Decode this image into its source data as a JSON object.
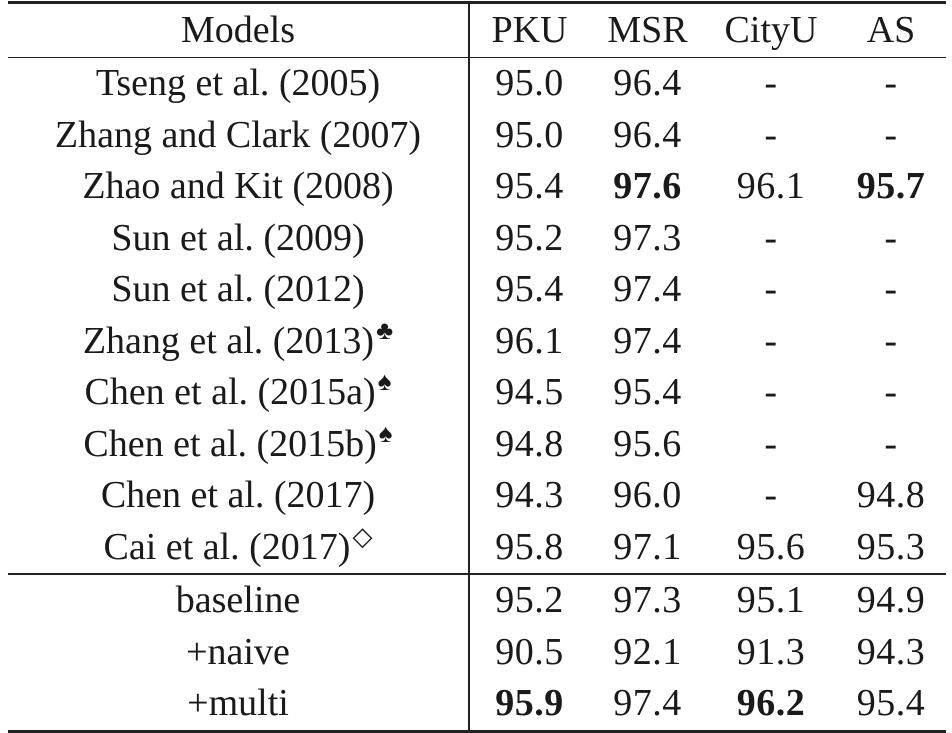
{
  "table": {
    "headers": [
      "Models",
      "PKU",
      "MSR",
      "CityU",
      "AS"
    ],
    "group_a": [
      {
        "model": "Tseng et al. (2005)",
        "mark": "",
        "pku": "95.0",
        "msr": "96.4",
        "cityu": "-",
        "as": "-",
        "bold": []
      },
      {
        "model": "Zhang and Clark (2007)",
        "mark": "",
        "pku": "95.0",
        "msr": "96.4",
        "cityu": "-",
        "as": "-",
        "bold": []
      },
      {
        "model": "Zhao and Kit (2008)",
        "mark": "",
        "pku": "95.4",
        "msr": "97.6",
        "cityu": "96.1",
        "as": "95.7",
        "bold": [
          "msr",
          "as"
        ]
      },
      {
        "model": "Sun et al. (2009)",
        "mark": "",
        "pku": "95.2",
        "msr": "97.3",
        "cityu": "-",
        "as": "-",
        "bold": []
      },
      {
        "model": "Sun et al. (2012)",
        "mark": "",
        "pku": "95.4",
        "msr": "97.4",
        "cityu": "-",
        "as": "-",
        "bold": []
      },
      {
        "model": "Zhang et al. (2013)",
        "mark": "♣",
        "pku": "96.1",
        "msr": "97.4",
        "cityu": "-",
        "as": "-",
        "bold": []
      },
      {
        "model": "Chen et al. (2015a)",
        "mark": "♠",
        "pku": "94.5",
        "msr": "95.4",
        "cityu": "-",
        "as": "-",
        "bold": []
      },
      {
        "model": "Chen et al. (2015b)",
        "mark": "♠",
        "pku": "94.8",
        "msr": "95.6",
        "cityu": "-",
        "as": "-",
        "bold": []
      },
      {
        "model": "Chen et al. (2017)",
        "mark": "",
        "pku": "94.3",
        "msr": "96.0",
        "cityu": "-",
        "as": "94.8",
        "bold": []
      },
      {
        "model": "Cai et al. (2017)",
        "mark": "◇",
        "pku": "95.8",
        "msr": "97.1",
        "cityu": "95.6",
        "as": "95.3",
        "bold": []
      }
    ],
    "group_b": [
      {
        "model": "baseline",
        "mark": "",
        "pku": "95.2",
        "msr": "97.3",
        "cityu": "95.1",
        "as": "94.9",
        "bold": []
      },
      {
        "model": "+naive",
        "mark": "",
        "pku": "90.5",
        "msr": "92.1",
        "cityu": "91.3",
        "as": "94.3",
        "bold": []
      },
      {
        "model": "+multi",
        "mark": "",
        "pku": "95.9",
        "msr": "97.4",
        "cityu": "96.2",
        "as": "95.4",
        "bold": [
          "pku",
          "cityu"
        ]
      }
    ]
  }
}
